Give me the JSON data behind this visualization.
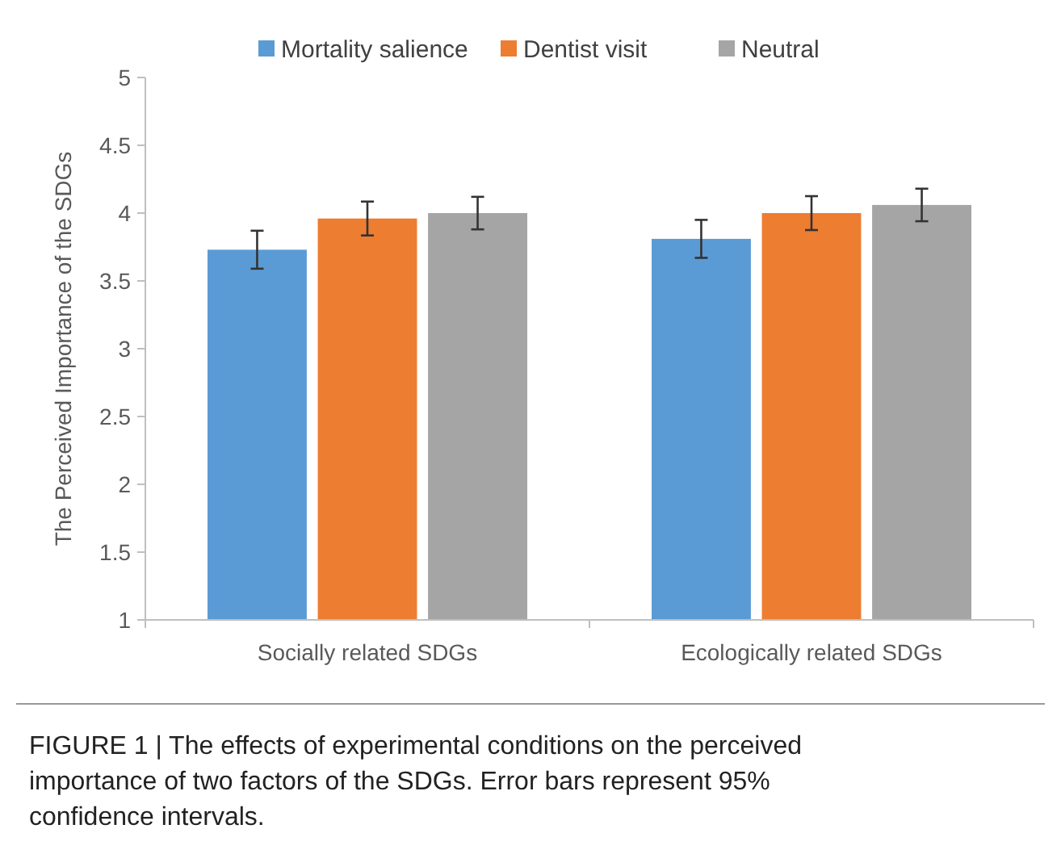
{
  "chart_data": {
    "type": "bar",
    "ylabel": "The Perceived Importance of the SDGs",
    "categories": [
      "Socially related SDGs",
      "Ecologically related SDGs"
    ],
    "series": [
      {
        "name": "Mortality salience",
        "color": "#5b9bd5",
        "values": [
          3.73,
          3.81
        ],
        "errors": [
          0.14,
          0.14
        ]
      },
      {
        "name": "Dentist visit",
        "color": "#ed7d31",
        "values": [
          3.96,
          4.0
        ],
        "errors": [
          0.125,
          0.125
        ]
      },
      {
        "name": "Neutral",
        "color": "#a5a5a5",
        "values": [
          4.0,
          4.06
        ],
        "errors": [
          0.12,
          0.12
        ]
      }
    ],
    "ylim": [
      1,
      5
    ],
    "yticks": [
      1,
      1.5,
      2,
      2.5,
      3,
      3.5,
      4,
      4.5,
      5
    ],
    "grid": false,
    "legend": "top",
    "annotations": [
      "FIGURE 1 | The effects of experimental conditions on the perceived importance of two factors of the SDGs. Error bars represent 95% confidence intervals."
    ]
  }
}
